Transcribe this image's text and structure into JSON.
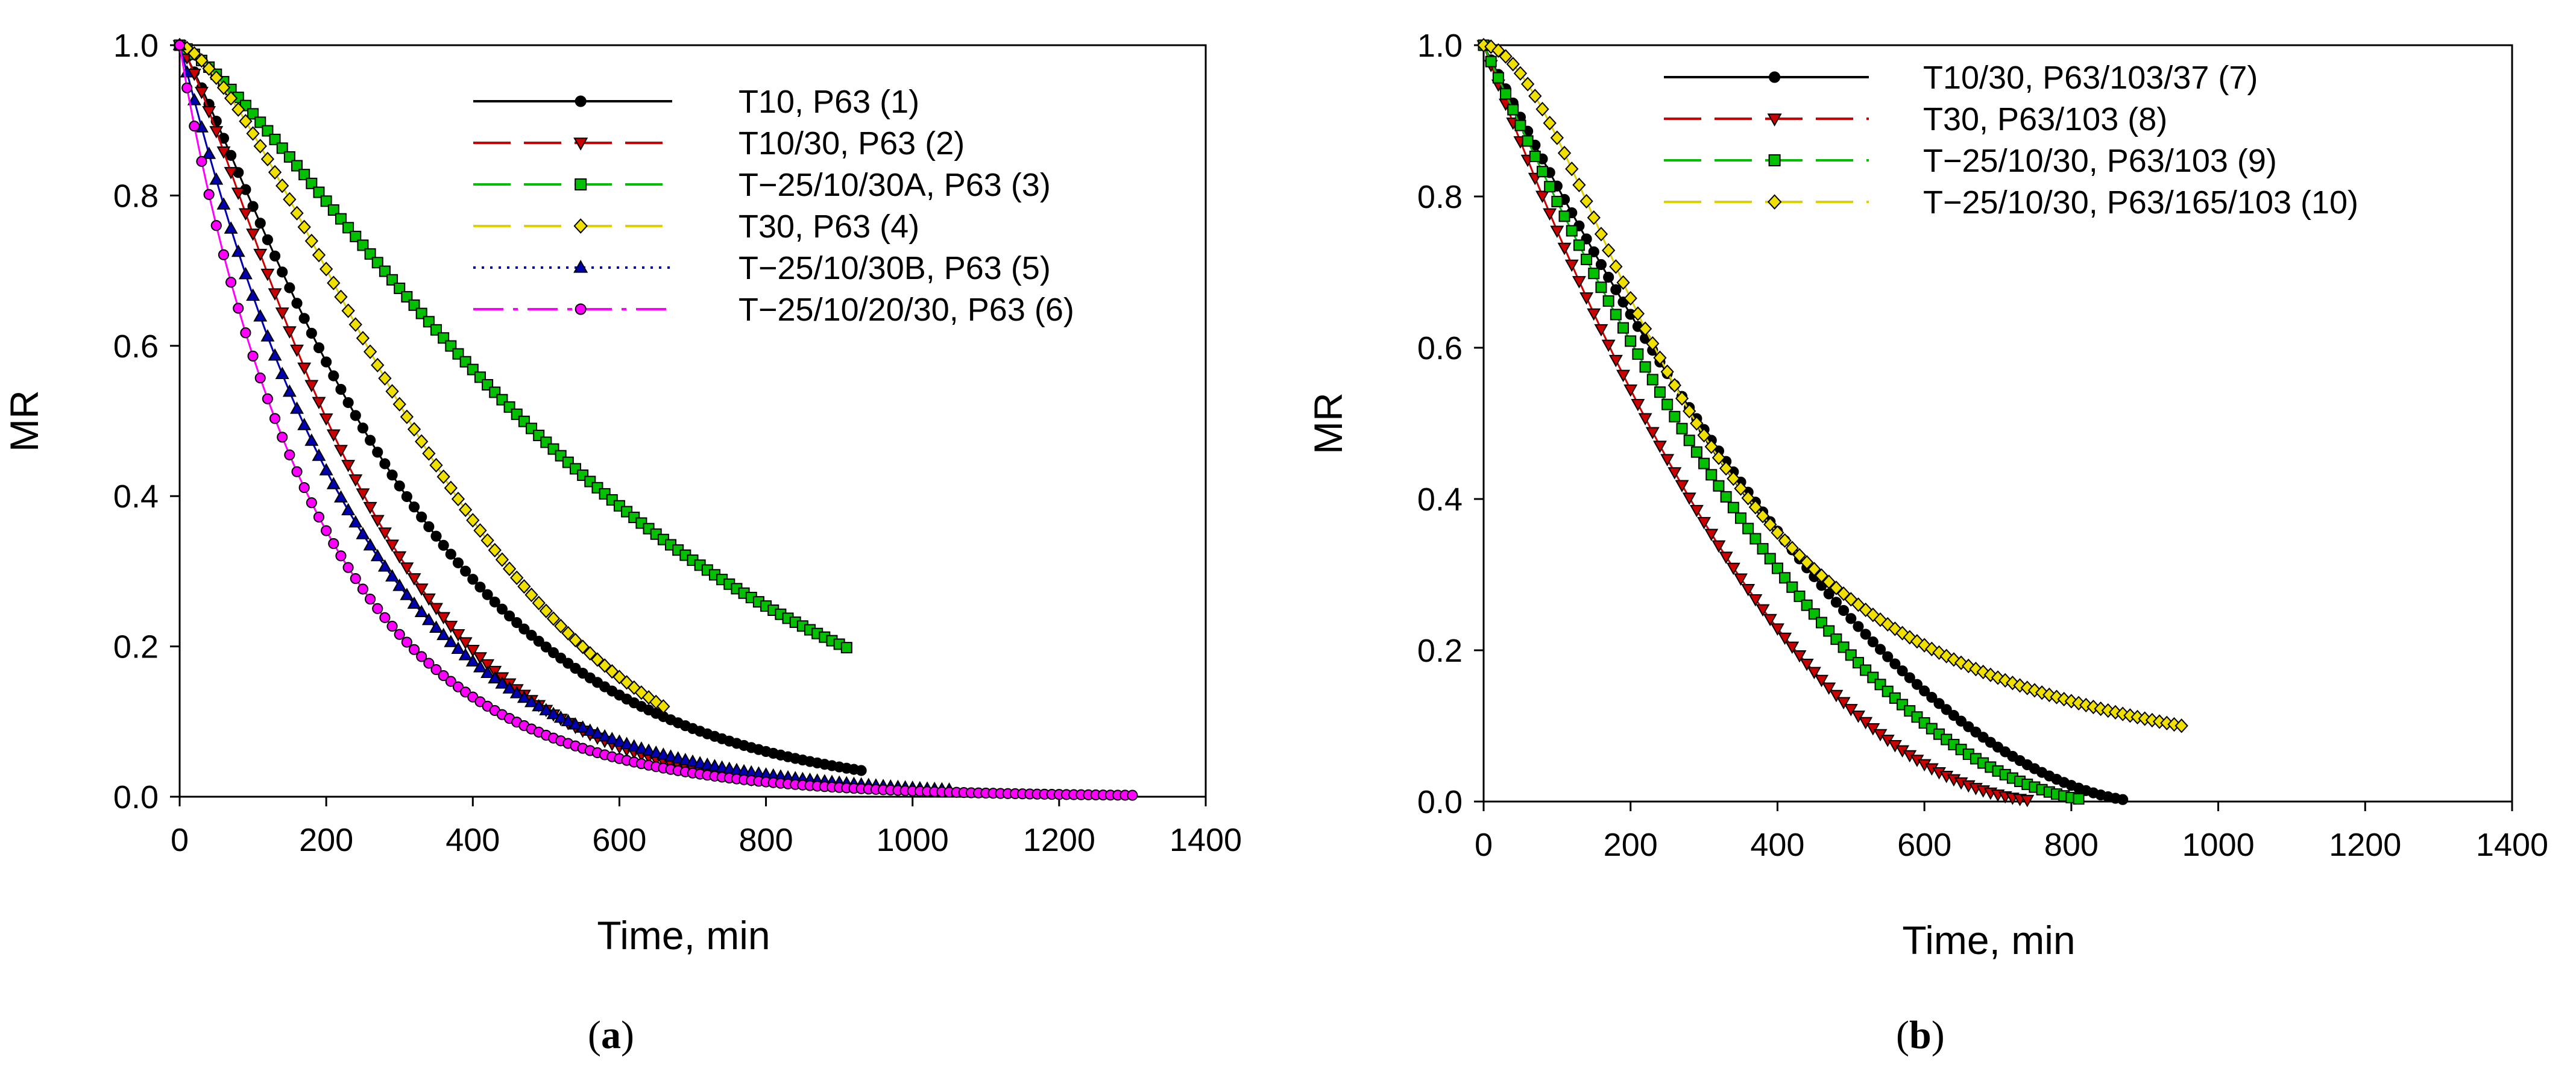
{
  "chart_data": [
    {
      "type": "scatter",
      "panel": "a",
      "caption_letter": "a",
      "xlabel": "Time, min",
      "ylabel": "MR",
      "xlim": [
        0,
        1400
      ],
      "ylim": [
        0,
        1.0
      ],
      "xticks": [
        "0",
        "200",
        "400",
        "600",
        "800",
        "1000",
        "1200",
        "1400"
      ],
      "yticks": [
        "0.0",
        "0.2",
        "0.4",
        "0.6",
        "0.8",
        "1.0"
      ],
      "legend_position": "top-right",
      "series": [
        {
          "name": "T10, P63 (1)",
          "color": "#000000",
          "marker": "circle",
          "line": "solid",
          "model": "weibull",
          "k": 0.003,
          "n": 1.18,
          "end": 930,
          "step": 10
        },
        {
          "name": "T10/30, P63 (2)",
          "color": "#cc0000",
          "marker": "triangle-down",
          "line": "dashed",
          "model": "weibull",
          "k": 0.0037,
          "n": 1.25,
          "end": 780,
          "step": 10
        },
        {
          "name": "T−25/10/30A, P63 (3)",
          "color": "#00c000",
          "marker": "square",
          "line": "dashed",
          "model": "weibull",
          "k": 0.0016,
          "n": 1.28,
          "end": 910,
          "step": 10
        },
        {
          "name": "T30, P63 (4)",
          "color": "#f0e000",
          "marker": "diamond",
          "line": "dashed",
          "model": "weibull",
          "k": 0.0025,
          "n": 1.5,
          "end": 660,
          "step": 10
        },
        {
          "name": "T−25/10/30B, P63 (5)",
          "color": "#0000b0",
          "marker": "triangle-up",
          "line": "dotted",
          "model": "weibull",
          "k": 0.0042,
          "n": 1.04,
          "end": 1050,
          "step": 10
        },
        {
          "name": "T−25/10/20/30, P63 (6)",
          "color": "#ff00ff",
          "marker": "circle",
          "line": "dashdot",
          "model": "weibull",
          "k": 0.0052,
          "n": 0.96,
          "end": 1300,
          "step": 10
        }
      ]
    },
    {
      "type": "scatter",
      "panel": "b",
      "caption_letter": "b",
      "xlabel": "Time, min",
      "ylabel": "MR",
      "xlim": [
        0,
        1400
      ],
      "ylim": [
        0,
        1.0
      ],
      "xticks": [
        "0",
        "200",
        "400",
        "600",
        "800",
        "1000",
        "1200",
        "1400"
      ],
      "yticks": [
        "0.0",
        "0.2",
        "0.4",
        "0.6",
        "0.8",
        "1.0"
      ],
      "legend_position": "top",
      "series": [
        {
          "name": "T10/30, P63/103/37 (7)",
          "color": "#000000",
          "marker": "circle",
          "line": "solid",
          "model": "poly",
          "t_end": 900,
          "n": 1.75,
          "end": 870,
          "step": 10
        },
        {
          "name": "T30, P63/103 (8)",
          "color": "#cc0000",
          "marker": "triangle-down",
          "line": "dashed",
          "model": "poly",
          "t_end": 780,
          "n": 2.05,
          "end": 740,
          "step": 10
        },
        {
          "name": "T−25/10/30, P63/103 (9)",
          "color": "#00c000",
          "marker": "square",
          "line": "dashed",
          "model": "poly",
          "t_end": 850,
          "n": 1.85,
          "end": 810,
          "step": 10
        },
        {
          "name": "T−25/10/30, P63/165/103 (10)",
          "color": "#f0e000",
          "marker": "diamond",
          "line": "dashed",
          "model": "hill",
          "k": 290,
          "n": 1.85,
          "end": 950,
          "step": 10
        }
      ]
    }
  ]
}
